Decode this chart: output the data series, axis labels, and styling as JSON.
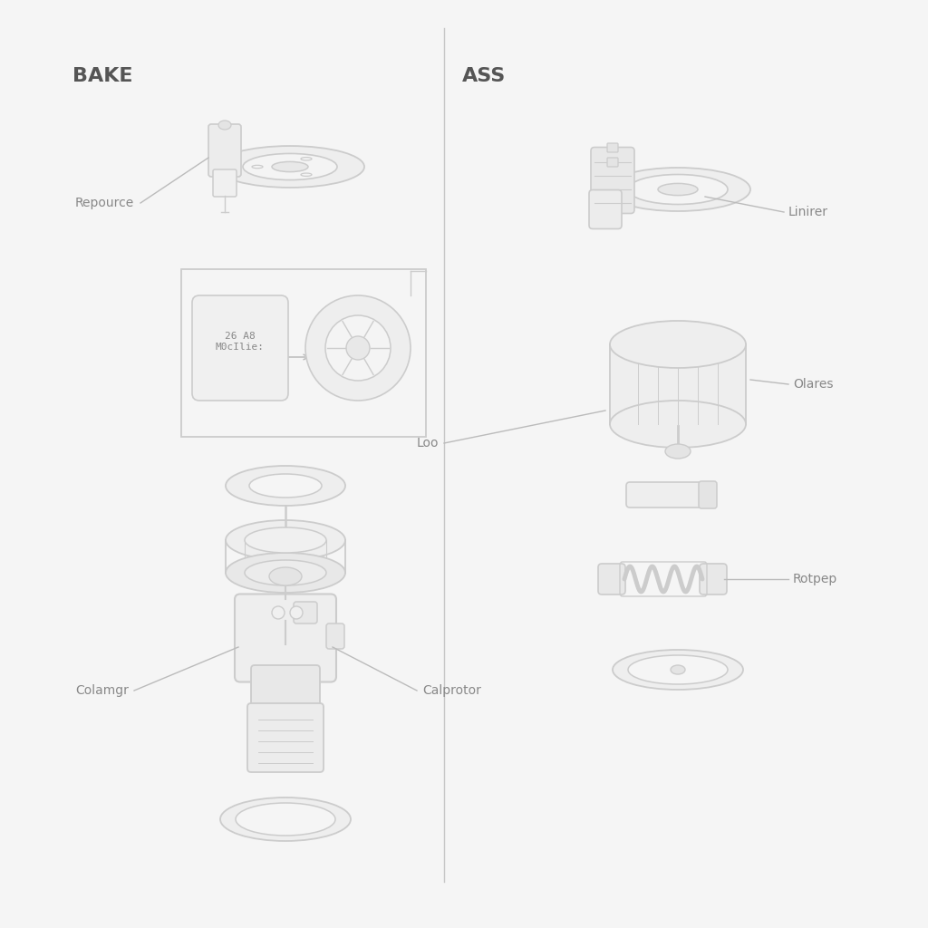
{
  "bg_color": "#f5f5f5",
  "comp_fc": "#e8e8e8",
  "comp_ec": "#cccccc",
  "comp_fc2": "#f0f0f0",
  "line_color": "#bbbbbb",
  "text_color": "#888888",
  "title_color": "#555555",
  "left_title": "BAKE",
  "right_title": "ASS",
  "module_text": "26 A8\nM0cIlie:",
  "font_title": 16,
  "font_label": 10,
  "font_module": 8
}
